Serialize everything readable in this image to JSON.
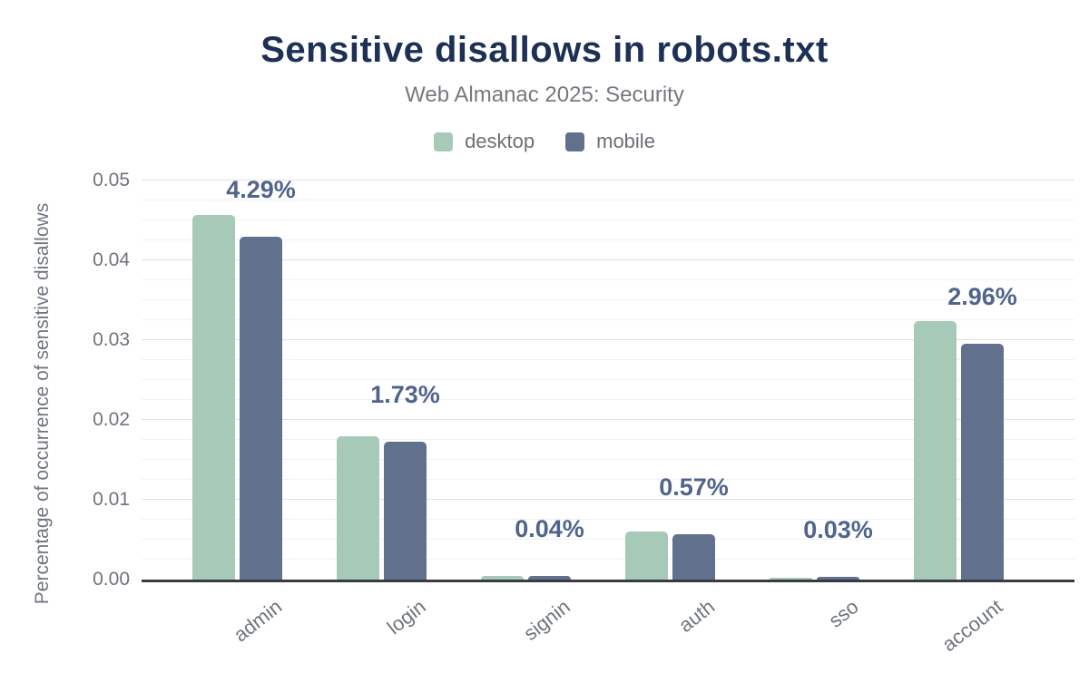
{
  "chart_data": {
    "type": "bar",
    "title": "Sensitive disallows in robots.txt",
    "subtitle": "Web Almanac 2025: Security",
    "categories": [
      "admin",
      "login",
      "signin",
      "auth",
      "sso",
      "account"
    ],
    "series": [
      {
        "name": "desktop",
        "color": "#a6c9b8",
        "values": [
          0.0457,
          0.018,
          0.0005,
          0.006,
          0.0002,
          0.0324
        ]
      },
      {
        "name": "mobile",
        "color": "#61708c",
        "values": [
          0.0429,
          0.0173,
          0.0004,
          0.0057,
          0.0003,
          0.0296
        ]
      }
    ],
    "data_labels": {
      "series": "mobile",
      "labels": [
        "4.29%",
        "1.73%",
        "0.04%",
        "0.57%",
        "0.03%",
        "2.96%"
      ]
    },
    "ylabel": "Percentage of occurrence of sensitive disallows",
    "xlabel": "",
    "yticks": [
      "0.00",
      "0.01",
      "0.02",
      "0.03",
      "0.04",
      "0.05"
    ],
    "ylim": [
      0,
      0.05
    ],
    "minor_grid_step": 0.0025,
    "major_grid_step": 0.01,
    "grid": true,
    "legend_position": "top"
  },
  "colors": {
    "title": "#1d3056",
    "subtitle": "#75797f",
    "data_label": "#50648c",
    "axis_line": "#373c42",
    "tick_text": "#6f747c",
    "major_grid": "#e1e1e4",
    "minor_grid": "#f2f2f4",
    "background": "#ffffff"
  }
}
